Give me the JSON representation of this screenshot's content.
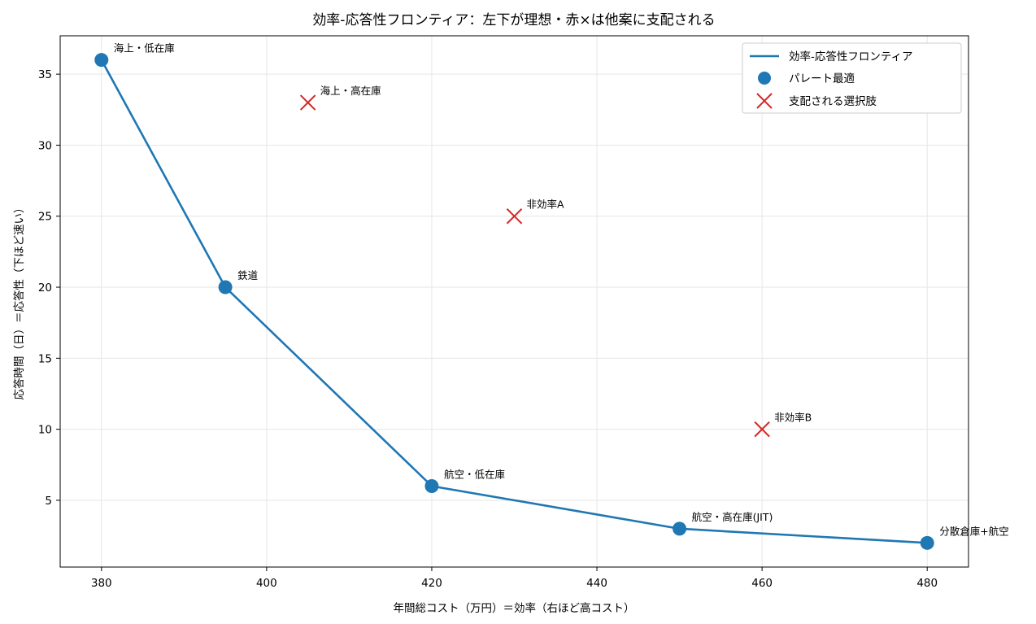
{
  "chart_data": {
    "type": "scatter",
    "title": "効率-応答性フロンティア：左下が理想・赤×は他案に支配される",
    "xlabel": "年間総コスト（万円）＝効率（右ほど高コスト）",
    "ylabel": "応答時間（日）＝応答性（下ほど速い）",
    "xlim": [
      375,
      485
    ],
    "ylim": [
      0.3,
      37.7
    ],
    "xticks": [
      380,
      400,
      420,
      440,
      460,
      480
    ],
    "yticks": [
      5,
      10,
      15,
      20,
      25,
      30,
      35
    ],
    "grid": true,
    "legend_position": "top-right",
    "colors": {
      "frontier": "#1f77b4",
      "dominated": "#d62728"
    },
    "series": [
      {
        "name": "効率-応答性フロンティア",
        "kind": "line",
        "x": [
          380,
          395,
          420,
          450,
          480
        ],
        "y": [
          36,
          20,
          6,
          3,
          2
        ]
      },
      {
        "name": "パレート最適",
        "kind": "points",
        "points": [
          {
            "x": 380,
            "y": 36,
            "label": "海上・低在庫"
          },
          {
            "x": 395,
            "y": 20,
            "label": "鉄道"
          },
          {
            "x": 420,
            "y": 6,
            "label": "航空・低在庫"
          },
          {
            "x": 450,
            "y": 3,
            "label": "航空・高在庫(JIT)"
          },
          {
            "x": 480,
            "y": 2,
            "label": "分散倉庫+航空"
          }
        ]
      },
      {
        "name": "支配される選択肢",
        "kind": "cross",
        "points": [
          {
            "x": 405,
            "y": 33,
            "label": "海上・高在庫"
          },
          {
            "x": 430,
            "y": 25,
            "label": "非効率A"
          },
          {
            "x": 460,
            "y": 10,
            "label": "非効率B"
          }
        ]
      }
    ]
  }
}
